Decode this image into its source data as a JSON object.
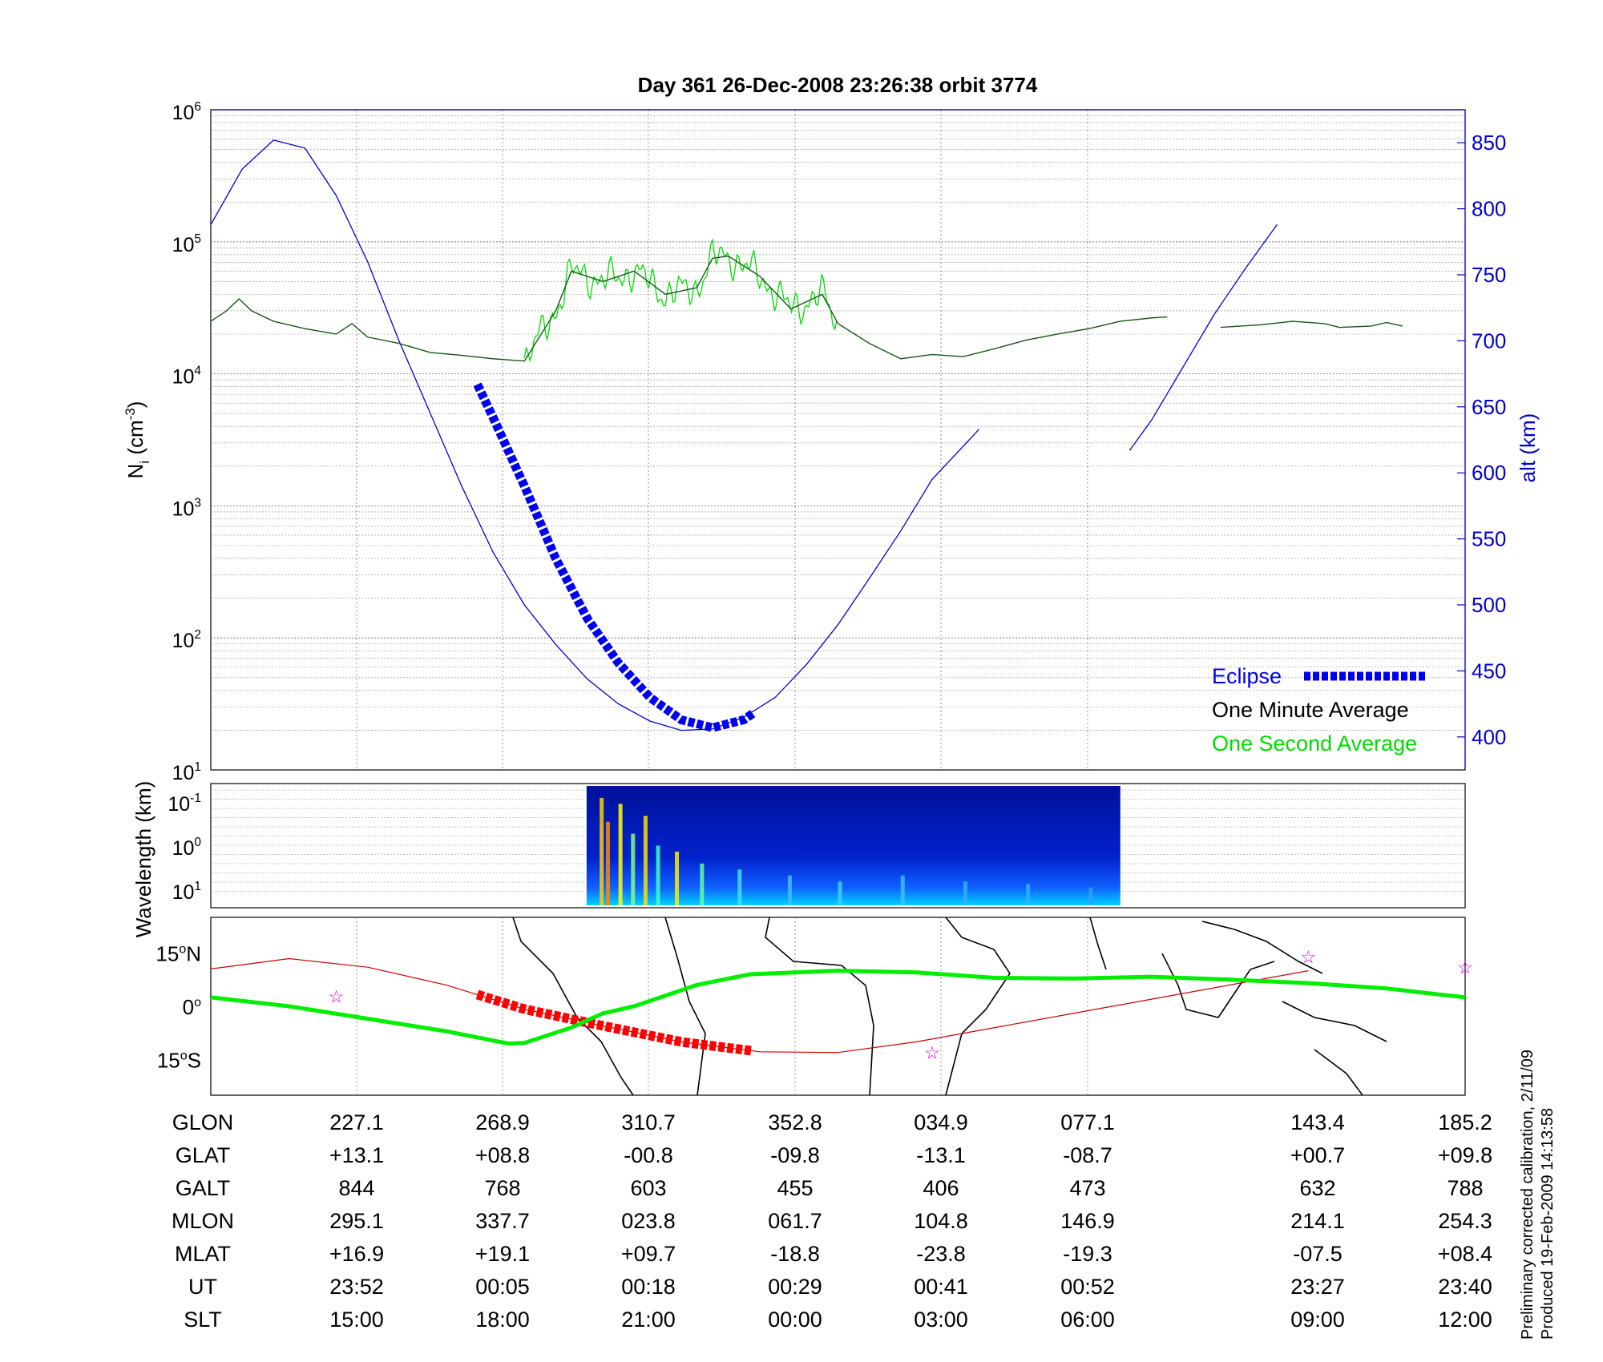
{
  "title": "Day 361   26-Dec-2008 23:26:38    orbit 3774",
  "footer": {
    "line1": "Preliminary corrected calibration, 2/11/09",
    "line2": "Produced 19-Feb-2009 14:13:58"
  },
  "colors": {
    "altitude": "#0000cc",
    "eclipse": "#0000ee",
    "one_minute": "#000000",
    "one_second": "#00dd00",
    "trace": "#ff0000",
    "track_geo": "#cc0000",
    "dip_equator": "#00ee00",
    "stars": "#dd00dd",
    "coast": "#000000"
  },
  "chart_data": [
    {
      "type": "line",
      "name": "density_altitude",
      "x": [
        "23:52",
        "00:05",
        "00:18",
        "00:29",
        "00:41",
        "00:52",
        "23:27",
        "23:40"
      ],
      "yleft": {
        "label": "N",
        "sub": "i",
        "unit_pre": " (cm",
        "unit_exp": "-3",
        "unit_post": ")",
        "scale": "log",
        "range": [
          10,
          1000000
        ],
        "ticks": [
          {
            "base": "10",
            "exp": "6"
          },
          {
            "base": "10",
            "exp": "5"
          },
          {
            "base": "10",
            "exp": "4"
          },
          {
            "base": "10",
            "exp": "3"
          },
          {
            "base": "10",
            "exp": "2"
          },
          {
            "base": "10",
            "exp": "1"
          }
        ]
      },
      "yright": {
        "label": "alt (km)",
        "range": [
          375,
          875
        ],
        "ticks": [
          "850",
          "800",
          "750",
          "700",
          "650",
          "600",
          "550",
          "500",
          "450",
          "400"
        ]
      },
      "legend": [
        {
          "label": "Eclipse",
          "color": "#0000ee",
          "style": "dashed-thick"
        },
        {
          "label": "One Minute Average",
          "color": "#000000",
          "style": "line"
        },
        {
          "label": "One Second Average",
          "color": "#00dd00",
          "style": "line"
        }
      ],
      "altitude_km": {
        "segment1": [
          [
            0.0,
            788
          ],
          [
            0.1,
            830
          ],
          [
            0.2,
            852
          ],
          [
            0.3,
            846
          ],
          [
            0.4,
            810
          ],
          [
            0.5,
            760
          ],
          [
            0.6,
            700
          ],
          [
            0.7,
            645
          ],
          [
            0.8,
            590
          ],
          [
            0.9,
            540
          ],
          [
            1.0,
            500
          ],
          [
            1.1,
            470
          ],
          [
            1.2,
            444
          ],
          [
            1.3,
            425
          ],
          [
            1.4,
            412
          ],
          [
            1.5,
            405
          ],
          [
            1.6,
            406
          ],
          [
            1.7,
            415
          ],
          [
            1.8,
            430
          ],
          [
            1.9,
            455
          ],
          [
            2.0,
            485
          ],
          [
            2.1,
            520
          ],
          [
            2.2,
            556
          ],
          [
            2.3,
            595
          ],
          [
            2.45,
            633
          ]
        ],
        "segment2": [
          [
            2.93,
            617
          ],
          [
            3.0,
            640
          ],
          [
            3.2,
            720
          ],
          [
            3.3,
            755
          ],
          [
            3.4,
            788
          ]
        ]
      },
      "eclipse_km": [
        [
          0.85,
          667
        ],
        [
          0.9,
          642
        ],
        [
          1.0,
          590
        ],
        [
          1.1,
          535
        ],
        [
          1.2,
          490
        ],
        [
          1.3,
          456
        ],
        [
          1.4,
          430
        ],
        [
          1.5,
          413
        ],
        [
          1.6,
          407
        ],
        [
          1.7,
          413
        ],
        [
          1.73,
          418
        ]
      ],
      "density_minute": {
        "segment1": [
          [
            0.0,
            25000
          ],
          [
            0.05,
            30000
          ],
          [
            0.09,
            37000
          ],
          [
            0.13,
            30000
          ],
          [
            0.2,
            25000
          ],
          [
            0.3,
            22000
          ],
          [
            0.4,
            20000
          ],
          [
            0.45,
            24000
          ],
          [
            0.5,
            19000
          ],
          [
            0.6,
            17000
          ],
          [
            0.7,
            14500
          ],
          [
            0.8,
            13800
          ],
          [
            0.9,
            13000
          ],
          [
            1.0,
            12500
          ],
          [
            1.1,
            30000
          ],
          [
            1.15,
            60000
          ],
          [
            1.25,
            50000
          ],
          [
            1.35,
            60000
          ],
          [
            1.45,
            40000
          ],
          [
            1.55,
            45000
          ],
          [
            1.6,
            75000
          ],
          [
            1.65,
            78000
          ],
          [
            1.75,
            55000
          ],
          [
            1.85,
            31000
          ],
          [
            1.95,
            40000
          ],
          [
            2.0,
            24000
          ],
          [
            2.1,
            17000
          ],
          [
            2.2,
            13000
          ],
          [
            2.3,
            14000
          ],
          [
            2.4,
            13500
          ],
          [
            2.5,
            15500
          ],
          [
            2.6,
            18000
          ],
          [
            2.7,
            20000
          ],
          [
            2.8,
            22000
          ],
          [
            2.9,
            25000
          ],
          [
            3.0,
            26500
          ],
          [
            3.05,
            27000
          ]
        ],
        "segment2": [
          [
            3.22,
            22500
          ],
          [
            3.35,
            23500
          ],
          [
            3.45,
            25000
          ],
          [
            3.55,
            24000
          ],
          [
            3.6,
            22500
          ],
          [
            3.7,
            23000
          ],
          [
            3.75,
            24500
          ],
          [
            3.8,
            23000
          ]
        ]
      },
      "density_second_range": [
        1.0,
        2.0
      ]
    },
    {
      "type": "heatmap",
      "name": "wavelength_spectrogram",
      "ylabel": "Wavelength (km)",
      "yticks": [
        {
          "base": "10",
          "exp": "-1"
        },
        {
          "base": "10",
          "exp": "0"
        },
        {
          "base": "10",
          "exp": "1"
        }
      ],
      "x_range_fraction": [
        0.2996,
        0.7251
      ]
    },
    {
      "type": "map",
      "name": "ground_track",
      "ylabels": [
        {
          "deg": "15",
          "hemi": "N"
        },
        {
          "deg": "0",
          "hemi": ""
        },
        {
          "deg": "15",
          "hemi": "S"
        }
      ],
      "lat_range": [
        -25,
        25
      ],
      "geo_track": [
        [
          0,
          10.5
        ],
        [
          0.25,
          13.4
        ],
        [
          0.5,
          11
        ],
        [
          0.75,
          6
        ],
        [
          1.0,
          -0.8
        ],
        [
          1.25,
          -5.5
        ],
        [
          1.5,
          -10
        ],
        [
          1.75,
          -12.8
        ],
        [
          2.0,
          -13.0
        ],
        [
          2.25,
          -10
        ],
        [
          2.5,
          -6
        ],
        [
          2.75,
          -2
        ],
        [
          3.0,
          2
        ],
        [
          3.25,
          6
        ],
        [
          3.5,
          10
        ]
      ],
      "geo_track_highlight_range": [
        0.85,
        1.73
      ],
      "dip_equator": [
        [
          0,
          2.5
        ],
        [
          0.25,
          0
        ],
        [
          0.5,
          -3.5
        ],
        [
          0.75,
          -7
        ],
        [
          0.95,
          -10.5
        ],
        [
          1.0,
          -10.3
        ],
        [
          1.15,
          -6
        ],
        [
          1.25,
          -2
        ],
        [
          1.35,
          0
        ],
        [
          1.55,
          6
        ],
        [
          1.72,
          9
        ],
        [
          2.0,
          10
        ],
        [
          2.25,
          9.5
        ],
        [
          2.5,
          8
        ],
        [
          2.75,
          7.8
        ],
        [
          3.0,
          8.3
        ],
        [
          3.25,
          7.5
        ],
        [
          3.5,
          6.5
        ],
        [
          3.75,
          5
        ],
        [
          4.0,
          2.5
        ]
      ],
      "stars": [
        [
          0.4,
          2.8
        ],
        [
          2.3,
          -13
        ],
        [
          3.5,
          14
        ],
        [
          4.0,
          11
        ]
      ]
    }
  ],
  "table": {
    "row_labels": [
      "GLON",
      "GLAT",
      "GALT",
      "MLON",
      "MLAT",
      "UT",
      "SLT"
    ],
    "columns": [
      [
        "227.1",
        "+13.1",
        "844",
        "295.1",
        "+16.9",
        "23:52",
        "15:00"
      ],
      [
        "268.9",
        "+08.8",
        "768",
        "337.7",
        "+19.1",
        "00:05",
        "18:00"
      ],
      [
        "310.7",
        "-00.8",
        "603",
        "023.8",
        "+09.7",
        "00:18",
        "21:00"
      ],
      [
        "352.8",
        "-09.8",
        "455",
        "061.7",
        "-18.8",
        "00:29",
        "00:00"
      ],
      [
        "034.9",
        "-13.1",
        "406",
        "104.8",
        "-23.8",
        "00:41",
        "03:00"
      ],
      [
        "077.1",
        "-08.7",
        "473",
        "146.9",
        "-19.3",
        "00:52",
        "06:00"
      ],
      [
        "143.4",
        "+00.7",
        "632",
        "214.1",
        "-07.5",
        "23:27",
        "09:00"
      ],
      [
        "185.2",
        "+09.8",
        "788",
        "254.3",
        "+08.4",
        "23:40",
        "12:00"
      ]
    ]
  }
}
